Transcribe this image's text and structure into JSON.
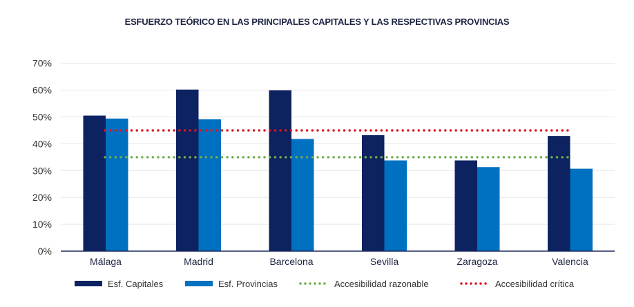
{
  "chart_data": {
    "type": "bar",
    "title": "ESFUERZO TEÓRICO EN LAS PRINCIPALES CAPITALES Y LAS RESPECTIVAS PROVINCIAS",
    "categories": [
      "Málaga",
      "Madrid",
      "Barcelona",
      "Sevilla",
      "Zaragoza",
      "Valencia"
    ],
    "series": [
      {
        "name": "Esf. Capitales",
        "color": "#0d2260",
        "values": [
          50.5,
          60.2,
          59.9,
          43.2,
          33.8,
          42.9
        ]
      },
      {
        "name": "Esf. Provincias",
        "color": "#0070c0",
        "values": [
          49.4,
          49.1,
          41.8,
          33.8,
          31.3,
          30.7
        ]
      }
    ],
    "reference_lines": [
      {
        "name": "Accesibilidad razonable",
        "value": 35,
        "color": "#70ad47",
        "style": "dotted"
      },
      {
        "name": "Accesibilidad crítica",
        "value": 45,
        "color": "#e0141e",
        "style": "dotted"
      }
    ],
    "ylim": [
      0,
      70
    ],
    "yticks": [
      "0%",
      "10%",
      "20%",
      "30%",
      "40%",
      "50%",
      "60%",
      "70%"
    ],
    "grid": true,
    "legend": "bottom"
  }
}
